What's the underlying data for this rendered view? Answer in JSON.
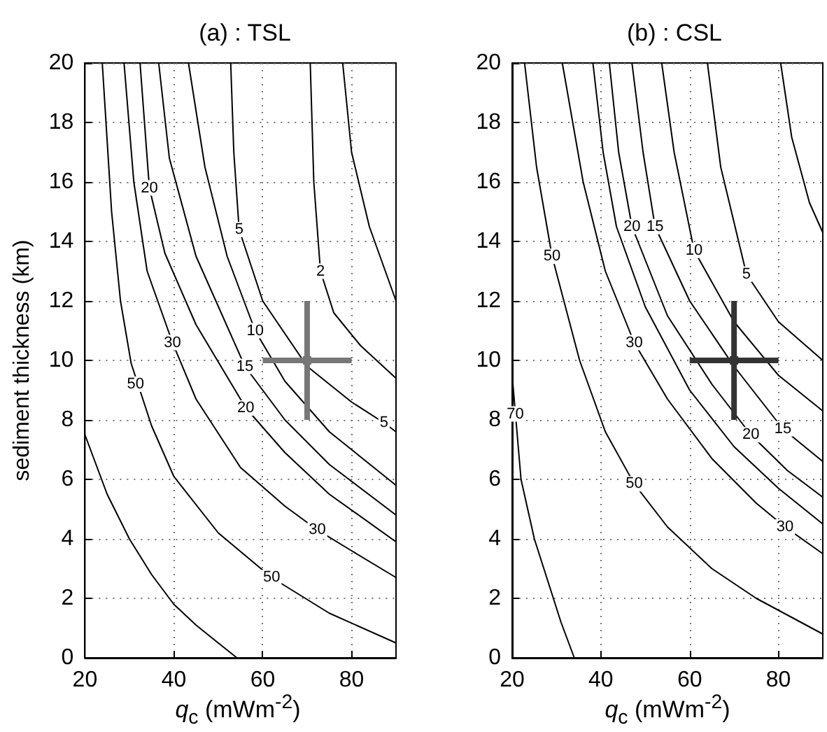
{
  "chart_data": [
    {
      "type": "line",
      "title": "(a) : TSL",
      "xlabel": "q$_{c}$  (mWm$^{-2}$)",
      "ylabel": "sediment thickness (km)",
      "xlim": [
        20,
        90
      ],
      "xticks": [
        20,
        40,
        60,
        80
      ],
      "ylim": [
        0,
        20
      ],
      "yticks": [
        0,
        2,
        4,
        6,
        8,
        10,
        12,
        14,
        16,
        18,
        20
      ],
      "grid": true,
      "series": [
        {
          "color": "#000000",
          "x": [
            20,
            25,
            30,
            35,
            40,
            45,
            50,
            54.2
          ],
          "values": [
            7.5,
            5.5,
            4,
            2.8,
            1.8,
            1.1,
            0.5,
            0
          ]
        },
        {
          "color": "#000000",
          "x": [
            23.9,
            26,
            28,
            30.4,
            35,
            40,
            50,
            62,
            75,
            90
          ],
          "values": [
            20,
            15,
            12,
            9.9,
            7.8,
            6.1,
            4.2,
            2.7,
            1.5,
            0.5
          ]
        },
        {
          "color": "#000000",
          "x": [
            28.8,
            31,
            34,
            39.7,
            45,
            55,
            65,
            72.3,
            80,
            90
          ],
          "values": [
            20,
            16,
            13,
            10.6,
            8.7,
            6.4,
            5.1,
            4.3,
            3.6,
            2.7
          ]
        },
        {
          "color": "#000000",
          "x": [
            32.4,
            34.5,
            38,
            45,
            56.2,
            65,
            75,
            90
          ],
          "values": [
            20,
            15.8,
            13.6,
            11.2,
            8.4,
            6.9,
            5.5,
            3.9
          ]
        },
        {
          "color": "#000000",
          "x": [
            36.6,
            39,
            45,
            56,
            65,
            75,
            90
          ],
          "values": [
            20,
            16.8,
            13.5,
            9.8,
            8,
            6.5,
            4.8
          ]
        },
        {
          "color": "#000000",
          "x": [
            43.3,
            47,
            52,
            58.3,
            65,
            75,
            90
          ],
          "values": [
            20,
            16.5,
            13.5,
            11,
            9.3,
            7.6,
            5.8
          ]
        },
        {
          "color": "#000000",
          "x": [
            52.8,
            53.5,
            54.7,
            60,
            70,
            80,
            87.3,
            90
          ],
          "values": [
            20,
            17,
            14.4,
            12,
            9.8,
            8.6,
            7.9,
            7.6
          ]
        },
        {
          "color": "#000000",
          "x": [
            70.7,
            71.5,
            73,
            76,
            82,
            90
          ],
          "values": [
            20,
            16,
            13,
            11.6,
            10.5,
            9.4
          ]
        },
        {
          "color": "#000000",
          "x": [
            78,
            80,
            84,
            90
          ],
          "values": [
            20,
            17,
            14.5,
            12
          ]
        },
        {
          "type": "scatter",
          "color": "#777777",
          "x": [
            70
          ],
          "values": [
            10
          ],
          "errors": [
            2
          ],
          "xerrors": [
            10
          ]
        }
      ],
      "annotations": [
        {
          "text": "50",
          "x": 31.4,
          "y": 9.2
        },
        {
          "text": "30",
          "x": 39.7,
          "y": 10.6
        },
        {
          "text": "20",
          "x": 34.5,
          "y": 15.8
        },
        {
          "text": "5",
          "x": 54.7,
          "y": 14.4
        },
        {
          "text": "10",
          "x": 58.3,
          "y": 11
        },
        {
          "text": "15",
          "x": 56,
          "y": 9.8
        },
        {
          "text": "20",
          "x": 56.2,
          "y": 8.4
        },
        {
          "text": "2",
          "x": 73,
          "y": 13
        },
        {
          "text": "5",
          "x": 87.3,
          "y": 7.9
        },
        {
          "text": "30",
          "x": 72.3,
          "y": 4.3
        },
        {
          "text": "50",
          "x": 62,
          "y": 2.7
        }
      ]
    },
    {
      "type": "line",
      "title": "(b) : CSL",
      "xlabel": "q$_{c}$  (mWm$^{-2}$)",
      "xlim": [
        20,
        90
      ],
      "xticks": [
        20,
        40,
        60,
        80
      ],
      "ylim": [
        0,
        20
      ],
      "yticks": [
        0,
        2,
        4,
        6,
        8,
        10,
        12,
        14,
        16,
        18,
        20
      ],
      "grid": true,
      "series": [
        {
          "color": "#000000",
          "x": [
            20,
            22,
            25,
            28,
            31,
            34
          ],
          "values": [
            9.5,
            6,
            4,
            2.6,
            1.2,
            0
          ]
        },
        {
          "color": "#000000",
          "x": [
            22.8,
            25.5,
            29,
            35.2,
            41,
            47.5,
            55,
            65,
            75,
            90
          ],
          "values": [
            20,
            16.5,
            13.5,
            10,
            7.6,
            5.85,
            4.4,
            3,
            2,
            0.8
          ]
        },
        {
          "color": "#000000",
          "x": [
            31.3,
            36,
            41,
            47.5,
            55,
            65,
            75,
            81.5,
            90
          ],
          "values": [
            20,
            16,
            13,
            10.6,
            8.7,
            6.7,
            5.2,
            4.4,
            3.5
          ]
        },
        {
          "color": "#000000",
          "x": [
            38.2,
            40.5,
            43.5,
            50,
            60,
            70,
            80,
            90
          ],
          "values": [
            20,
            17,
            14.5,
            11.8,
            9,
            7.1,
            5.7,
            4.5
          ]
        },
        {
          "color": "#000000",
          "x": [
            41.9,
            44,
            47,
            55,
            65,
            73.8,
            82,
            90
          ],
          "values": [
            20,
            17,
            14.5,
            11.5,
            9.2,
            7.5,
            6.3,
            5.4
          ]
        },
        {
          "color": "#000000",
          "x": [
            47,
            49.5,
            52.2,
            60,
            70,
            81,
            90
          ],
          "values": [
            20,
            17,
            14.5,
            12,
            9.8,
            7.7,
            6.6
          ]
        },
        {
          "color": "#000000",
          "x": [
            53.7,
            56.5,
            61,
            70,
            80,
            90
          ],
          "values": [
            20,
            17,
            13.7,
            11.3,
            9.5,
            8.3
          ]
        },
        {
          "color": "#000000",
          "x": [
            64,
            67,
            72.8,
            80,
            90
          ],
          "values": [
            20,
            16.5,
            12.9,
            11.3,
            10
          ]
        },
        {
          "color": "#000000",
          "x": [
            80.5,
            83,
            87,
            90
          ],
          "values": [
            20,
            17.5,
            15.3,
            14.3
          ]
        },
        {
          "type": "scatter",
          "color": "#333333",
          "x": [
            70
          ],
          "values": [
            10
          ],
          "errors": [
            2
          ],
          "xerrors": [
            10
          ]
        }
      ],
      "annotations": [
        {
          "text": "70",
          "x": 20.7,
          "y": 8.2
        },
        {
          "text": "50",
          "x": 29,
          "y": 13.5
        },
        {
          "text": "50",
          "x": 47.5,
          "y": 5.85
        },
        {
          "text": "30",
          "x": 47.5,
          "y": 10.6
        },
        {
          "text": "20",
          "x": 47,
          "y": 14.5
        },
        {
          "text": "15",
          "x": 52.2,
          "y": 14.5
        },
        {
          "text": "10",
          "x": 61,
          "y": 13.7
        },
        {
          "text": "5",
          "x": 72.8,
          "y": 12.9
        },
        {
          "text": "20",
          "x": 73.8,
          "y": 7.5
        },
        {
          "text": "15",
          "x": 81,
          "y": 7.7
        },
        {
          "text": "30",
          "x": 81.5,
          "y": 4.4
        }
      ]
    }
  ]
}
